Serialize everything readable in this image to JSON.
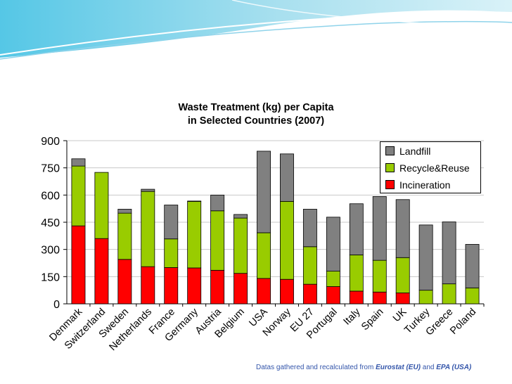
{
  "chart_data": {
    "type": "bar",
    "stacked": true,
    "title": [
      "Waste Treatment (kg) per Capita",
      "in Selected Countries (2007)"
    ],
    "xlabel": "",
    "ylabel": "",
    "ylim": [
      0,
      900
    ],
    "yticks": [
      0,
      150,
      300,
      450,
      600,
      750,
      900
    ],
    "grid": true,
    "legend_position": "top-right",
    "categories": [
      "Denmark",
      "Switzerland",
      "Sweden",
      "Netherlands",
      "France",
      "Germany",
      "Austria",
      "Belgium",
      "USA",
      "Norway",
      "EU 27",
      "Portugal",
      "Italy",
      "Spain",
      "UK",
      "Turkey",
      "Greece",
      "Poland"
    ],
    "series": [
      {
        "name": "Incineration",
        "color": "#ff0000",
        "values": [
          430,
          360,
          245,
          205,
          200,
          198,
          185,
          168,
          140,
          135,
          108,
          95,
          70,
          65,
          60,
          0,
          0,
          0
        ]
      },
      {
        "name": "Recycle&Reuse",
        "color": "#99cc00",
        "values": [
          330,
          365,
          255,
          415,
          158,
          367,
          328,
          305,
          252,
          430,
          207,
          85,
          200,
          175,
          195,
          75,
          110,
          88
        ]
      },
      {
        "name": "Landfill",
        "color": "#808080",
        "values": [
          40,
          0,
          22,
          12,
          187,
          2,
          87,
          20,
          450,
          262,
          207,
          298,
          282,
          352,
          320,
          360,
          342,
          240
        ]
      }
    ],
    "source_note": {
      "prefix": "Datas gathered and recalculated from ",
      "src1": "Eurostat (EU)",
      "mid": " and ",
      "src2": "EPA (USA)"
    }
  }
}
